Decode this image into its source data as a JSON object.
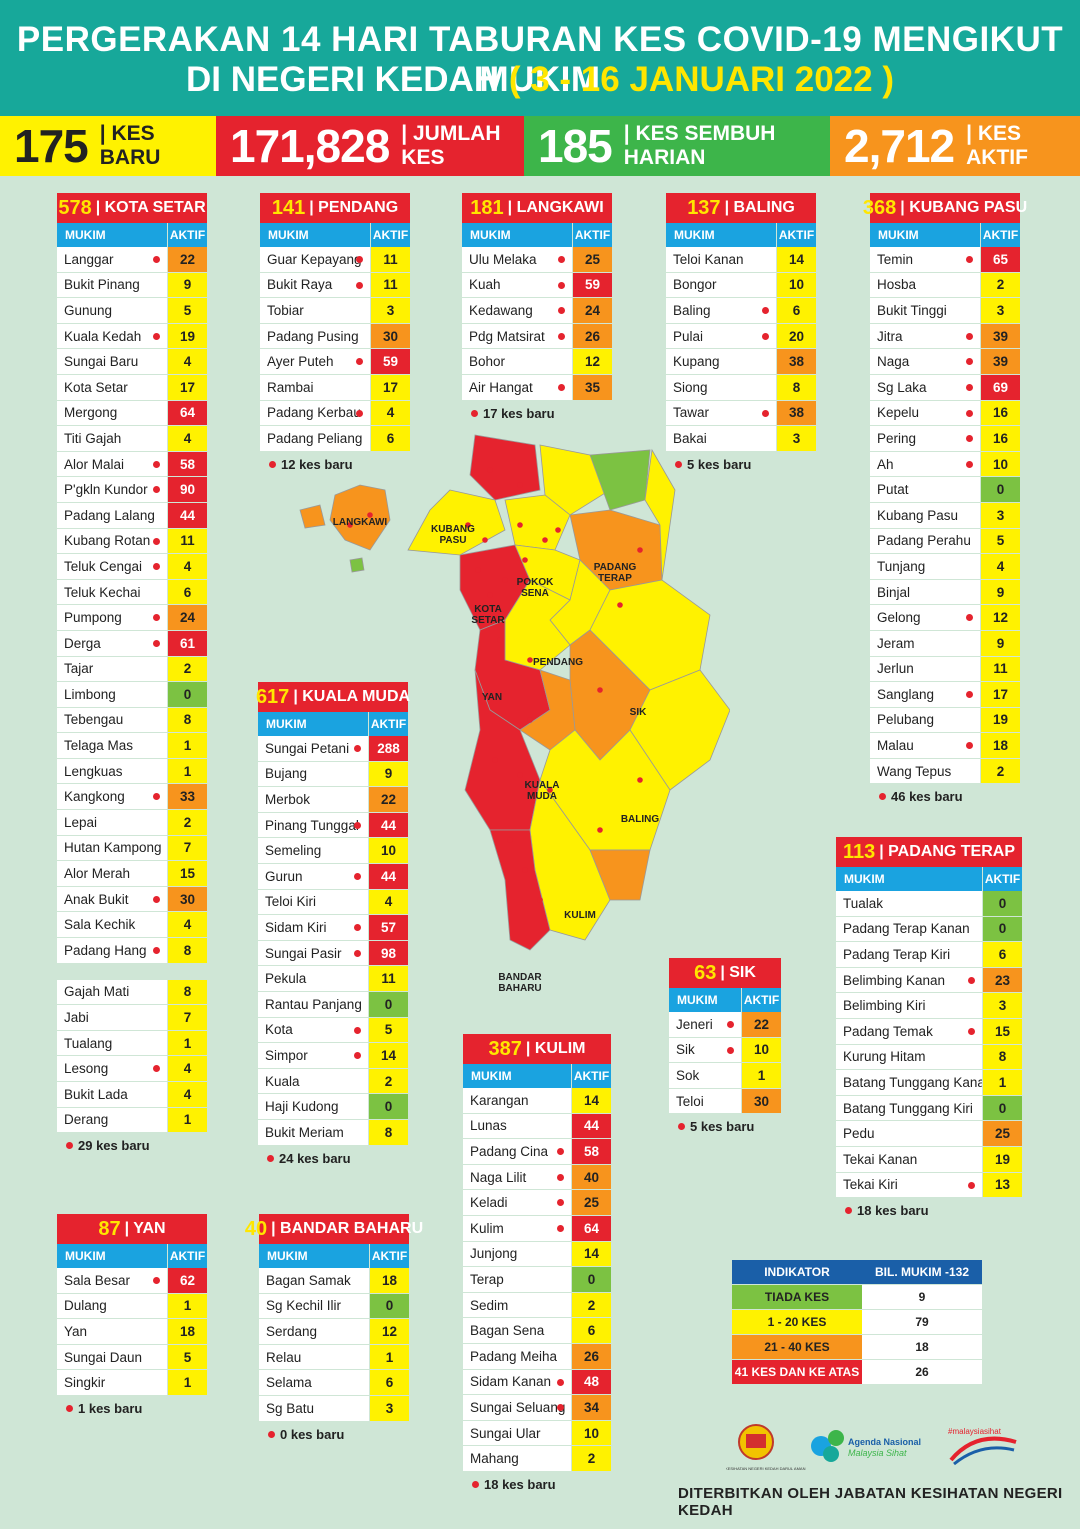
{
  "header": {
    "title_line1": "PERGERAKAN 14 HARI TABURAN KES COVID-19 MENGIKUT MUKIM",
    "title_line2": "DI NEGERI KEDAH",
    "date_range": "( 3 - 16 JANUARI 2022 )"
  },
  "stats": [
    {
      "value": "175",
      "label": "| KES BARU",
      "bg": "#fff200",
      "fg": "#222"
    },
    {
      "value": "171,828",
      "label": "| JUMLAH KES",
      "bg": "#e5232e",
      "fg": "#fff"
    },
    {
      "value": "185",
      "label": "| KES SEMBUH HARIAN",
      "bg": "#3db54a",
      "fg": "#fff"
    },
    {
      "value": "2,712",
      "label": "| KES AKTIF",
      "bg": "#f7941d",
      "fg": "#fff"
    }
  ],
  "col_mukim": "MUKIM",
  "col_aktif": "AKTIF",
  "colors": {
    "tiada": "#7cc242",
    "low": "#fff200",
    "mid": "#f7941d",
    "high": "#e5232e"
  },
  "districts": [
    {
      "key": "kotasetar",
      "total": "578",
      "name": "| KOTA SETAR",
      "note": "29 kes baru",
      "rows": [
        [
          "Langgar",
          22,
          1
        ],
        [
          "Bukit Pinang",
          9,
          0
        ],
        [
          "Gunung",
          5,
          0
        ],
        [
          "Kuala Kedah",
          19,
          1
        ],
        [
          "Sungai Baru",
          4,
          0
        ],
        [
          "Kota Setar",
          17,
          0
        ],
        [
          "Mergong",
          64,
          0
        ],
        [
          "Titi Gajah",
          4,
          0
        ],
        [
          "Alor Malai",
          58,
          1
        ],
        [
          "P'gkln Kundor",
          90,
          1
        ],
        [
          "Padang Lalang",
          44,
          0
        ],
        [
          "Kubang Rotan",
          11,
          1
        ],
        [
          "Teluk Cengai",
          4,
          1
        ],
        [
          "Teluk Kechai",
          6,
          0
        ],
        [
          "Pumpong",
          24,
          1
        ],
        [
          "Derga",
          61,
          1
        ],
        [
          "Tajar",
          2,
          0
        ],
        [
          "Limbong",
          0,
          0
        ],
        [
          "Tebengau",
          8,
          0
        ],
        [
          "Telaga Mas",
          1,
          0
        ],
        [
          "Lengkuas",
          1,
          0
        ],
        [
          "Kangkong",
          33,
          1
        ],
        [
          "Lepai",
          2,
          0
        ],
        [
          "Hutan Kampong",
          7,
          0
        ],
        [
          "Alor Merah",
          15,
          0
        ],
        [
          "Anak Bukit",
          30,
          1
        ],
        [
          "Sala Kechik",
          4,
          0
        ],
        [
          "Padang Hang",
          8,
          1
        ]
      ],
      "rows2": [
        [
          "Gajah Mati",
          8,
          0
        ],
        [
          "Jabi",
          7,
          0
        ],
        [
          "Tualang",
          1,
          0
        ],
        [
          "Lesong",
          4,
          1
        ],
        [
          "Bukit Lada",
          4,
          0
        ],
        [
          "Derang",
          1,
          0
        ]
      ]
    },
    {
      "key": "pendang",
      "total": "141",
      "name": "| PENDANG",
      "note": "12 kes baru",
      "rows": [
        [
          "Guar Kepayang",
          11,
          1
        ],
        [
          "Bukit Raya",
          11,
          1
        ],
        [
          "Tobiar",
          3,
          0
        ],
        [
          "Padang Pusing",
          30,
          0
        ],
        [
          "Ayer Puteh",
          59,
          1
        ],
        [
          "Rambai",
          17,
          0
        ],
        [
          "Padang Kerbau",
          4,
          1
        ],
        [
          "Padang Peliang",
          6,
          0
        ]
      ]
    },
    {
      "key": "langkawi",
      "total": "181",
      "name": "| LANGKAWI",
      "note": "17 kes baru",
      "rows": [
        [
          "Ulu Melaka",
          25,
          1
        ],
        [
          "Kuah",
          59,
          1
        ],
        [
          "Kedawang",
          24,
          1
        ],
        [
          "Pdg Matsirat",
          26,
          1
        ],
        [
          "Bohor",
          12,
          0
        ],
        [
          "Air Hangat",
          35,
          1
        ]
      ]
    },
    {
      "key": "baling",
      "total": "137",
      "name": "| BALING",
      "note": "5 kes baru",
      "rows": [
        [
          "Teloi Kanan",
          14,
          0
        ],
        [
          "Bongor",
          10,
          0
        ],
        [
          "Baling",
          6,
          1
        ],
        [
          "Pulai",
          20,
          1
        ],
        [
          "Kupang",
          38,
          0
        ],
        [
          "Siong",
          8,
          0
        ],
        [
          "Tawar",
          38,
          1
        ],
        [
          "Bakai",
          3,
          0
        ]
      ]
    },
    {
      "key": "kubangpasu",
      "total": "368",
      "name": "| KUBANG PASU",
      "note": "46 kes baru",
      "rows": [
        [
          "Temin",
          65,
          1
        ],
        [
          "Hosba",
          2,
          0
        ],
        [
          "Bukit Tinggi",
          3,
          0
        ],
        [
          "Jitra",
          39,
          1
        ],
        [
          "Naga",
          39,
          1
        ],
        [
          "Sg Laka",
          69,
          1
        ],
        [
          "Kepelu",
          16,
          1
        ],
        [
          "Pering",
          16,
          1
        ],
        [
          "Ah",
          10,
          1
        ],
        [
          "Putat",
          0,
          0
        ],
        [
          "Kubang Pasu",
          3,
          0
        ],
        [
          "Padang Perahu",
          5,
          0
        ],
        [
          "Tunjang",
          4,
          0
        ],
        [
          "Binjal",
          9,
          0
        ],
        [
          "Gelong",
          12,
          1
        ],
        [
          "Jeram",
          9,
          0
        ],
        [
          "Jerlun",
          11,
          0
        ],
        [
          "Sanglang",
          17,
          1
        ],
        [
          "Pelubang",
          19,
          0
        ],
        [
          "Malau",
          18,
          1
        ],
        [
          "Wang Tepus",
          2,
          0
        ]
      ]
    },
    {
      "key": "kualamuda",
      "total": "617",
      "name": "| KUALA MUDA",
      "note": "24 kes baru",
      "rows": [
        [
          "Sungai Petani",
          288,
          1
        ],
        [
          "Bujang",
          9,
          0
        ],
        [
          "Merbok",
          22,
          0
        ],
        [
          "Pinang Tunggal",
          44,
          1
        ],
        [
          "Semeling",
          10,
          0
        ],
        [
          "Gurun",
          44,
          1
        ],
        [
          "Teloi Kiri",
          4,
          0
        ],
        [
          "Sidam Kiri",
          57,
          1
        ],
        [
          "Sungai Pasir",
          98,
          1
        ],
        [
          "Pekula",
          11,
          0
        ],
        [
          "Rantau Panjang",
          0,
          0
        ],
        [
          "Kota",
          5,
          1
        ],
        [
          "Simpor",
          14,
          1
        ],
        [
          "Kuala",
          2,
          0
        ],
        [
          "Haji Kudong",
          0,
          0
        ],
        [
          "Bukit Meriam",
          8,
          0
        ]
      ]
    },
    {
      "key": "padangterap",
      "total": "113",
      "name": "| PADANG TERAP",
      "note": "18 kes baru",
      "rows": [
        [
          "Tualak",
          0,
          0
        ],
        [
          "Padang Terap Kanan",
          0,
          0
        ],
        [
          "Padang Terap Kiri",
          6,
          0
        ],
        [
          "Belimbing Kanan",
          23,
          1
        ],
        [
          "Belimbing Kiri",
          3,
          0
        ],
        [
          "Padang Temak",
          15,
          1
        ],
        [
          "Kurung Hitam",
          8,
          0
        ],
        [
          "Batang Tunggang Kanan",
          1,
          0
        ],
        [
          "Batang Tunggang Kiri",
          0,
          0
        ],
        [
          "Pedu",
          25,
          0
        ],
        [
          "Tekai Kanan",
          19,
          0
        ],
        [
          "Tekai Kiri",
          13,
          1
        ]
      ]
    },
    {
      "key": "sik",
      "total": "63",
      "name": "| SIK",
      "note": "5 kes baru",
      "rows": [
        [
          "Jeneri",
          22,
          1
        ],
        [
          "Sik",
          10,
          1
        ],
        [
          "Sok",
          1,
          0
        ],
        [
          "Teloi",
          30,
          0
        ]
      ]
    },
    {
      "key": "kulim",
      "total": "387",
      "name": "| KULIM",
      "note": "18 kes baru",
      "rows": [
        [
          "Karangan",
          14,
          0
        ],
        [
          "Lunas",
          44,
          0
        ],
        [
          "Padang Cina",
          58,
          1
        ],
        [
          "Naga Lilit",
          40,
          1
        ],
        [
          "Keladi",
          25,
          1
        ],
        [
          "Kulim",
          64,
          1
        ],
        [
          "Junjong",
          14,
          0
        ],
        [
          "Terap",
          0,
          0
        ],
        [
          "Sedim",
          2,
          0
        ],
        [
          "Bagan Sena",
          6,
          0
        ],
        [
          "Padang Meiha",
          26,
          0
        ],
        [
          "Sidam Kanan",
          48,
          1
        ],
        [
          "Sungai Seluang",
          34,
          1
        ],
        [
          "Sungai Ular",
          10,
          0
        ],
        [
          "Mahang",
          2,
          0
        ]
      ]
    },
    {
      "key": "yan",
      "total": "87",
      "name": "| YAN",
      "note": "1 kes baru",
      "rows": [
        [
          "Sala Besar",
          62,
          1
        ],
        [
          "Dulang",
          1,
          0
        ],
        [
          "Yan",
          18,
          0
        ],
        [
          "Sungai Daun",
          5,
          0
        ],
        [
          "Singkir",
          1,
          0
        ]
      ]
    },
    {
      "key": "bandarbaharu",
      "total": "40",
      "name": "| BANDAR BAHARU",
      "note": "0 kes baru",
      "rows": [
        [
          "Bagan Samak",
          18,
          0
        ],
        [
          "Sg Kechil Ilir",
          0,
          0
        ],
        [
          "Serdang",
          12,
          0
        ],
        [
          "Relau",
          1,
          0
        ],
        [
          "Selama",
          6,
          0
        ],
        [
          "Sg Batu",
          3,
          0
        ]
      ]
    }
  ],
  "map_labels": [
    "LANGKAWI",
    "KUBANG\nPASU",
    "PADANG\nTERAP",
    "POKOK\nSENA",
    "KOTA\nSETAR",
    "PENDANG",
    "SIK",
    "YAN",
    "KUALA\nMUDA",
    "BALING",
    "KULIM",
    "BANDAR\nBAHARU"
  ],
  "legend": {
    "h1": "INDIKATOR",
    "h2": "BIL. MUKIM -132",
    "rows": [
      [
        "TIADA KES",
        "9"
      ],
      [
        "1 - 20 KES",
        "79"
      ],
      [
        "21 - 40 KES",
        "18"
      ],
      [
        "41 KES DAN KE ATAS",
        "26"
      ]
    ]
  },
  "logos": {
    "agenda_line1": "Agenda Nasional",
    "agenda_line2": "Malaysia Sihat",
    "hashtag": "#malaysiasihat",
    "jabatan_small": "JABATAN KESIHATAN NEGERI KEDAH DARUL AMAN"
  },
  "footer": "DITERBITKAN OLEH JABATAN KESIHATAN NEGERI KEDAH"
}
